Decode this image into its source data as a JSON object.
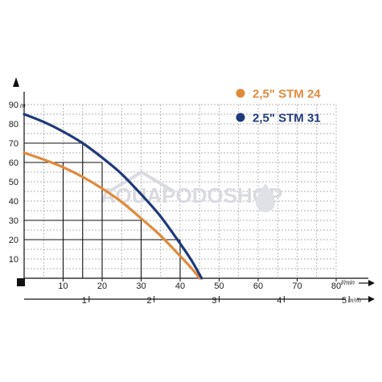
{
  "chart_data": {
    "type": "line",
    "title": "",
    "xlabel": "",
    "ylabel": "",
    "x_unit": "l/min",
    "y_unit": "m",
    "x2_unit": "m³/h",
    "xlim": [
      0,
      80
    ],
    "ylim": [
      0,
      90
    ],
    "x_ticks": [
      "10",
      "20",
      "30",
      "40",
      "50",
      "60",
      "70",
      "80"
    ],
    "y_ticks": [
      "10",
      "20",
      "30",
      "40",
      "50",
      "60",
      "70",
      "80",
      "90"
    ],
    "x2_ticks": [
      "1",
      "2",
      "3",
      "4",
      "5"
    ],
    "grid": true,
    "legend_position": "top-right",
    "series": [
      {
        "name": "2,5\" STM 24",
        "color": "#e08a3c",
        "x": [
          0,
          5,
          10,
          15,
          20,
          25,
          30,
          35,
          40,
          43,
          45
        ],
        "y": [
          65,
          61.5,
          57.5,
          52.5,
          46.5,
          39.5,
          31,
          22,
          11.5,
          5,
          0
        ]
      },
      {
        "name": "2,5\" STM 31",
        "color": "#1f3a7a",
        "x": [
          0,
          5,
          10,
          15,
          20,
          25,
          30,
          35,
          40,
          43,
          45.5
        ],
        "y": [
          85,
          81,
          76,
          70,
          62.5,
          54,
          43.5,
          32,
          18,
          9,
          0
        ]
      }
    ],
    "operating_points": [
      {
        "x": 10,
        "y": 60
      },
      {
        "x": 15,
        "y": 70
      },
      {
        "x": 20,
        "y": 60
      },
      {
        "x": 30,
        "y": 30
      },
      {
        "x": 40,
        "y": 20
      }
    ]
  },
  "watermark": "AQUAPODOSHOP",
  "colors": {
    "grid": "#9a9a9a",
    "axis": "#111111",
    "background": "#ffffff"
  }
}
